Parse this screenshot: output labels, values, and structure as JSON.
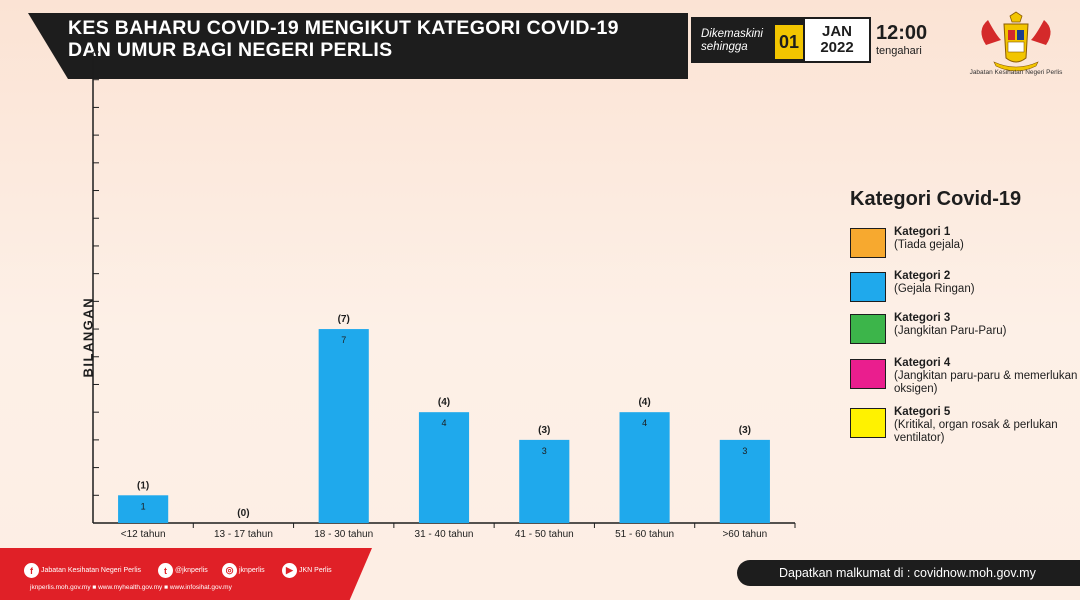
{
  "header": {
    "title": "KES BAHARU COVID-19 MENGIKUT KATEGORI COVID-19 DAN UMUR BAGI NEGERI PERLIS",
    "update_label": "Dikemaskini sehingga",
    "day": "01",
    "month": "JAN",
    "year": "2022",
    "time": "12:00",
    "time_period": "tengahari",
    "org_name": "Jabatan Kesihatan Negeri Perlis"
  },
  "chart_data": {
    "type": "bar",
    "categories": [
      "<12 tahun",
      "13 - 17 tahun",
      "18 - 30 tahun",
      "31 - 40 tahun",
      "41 - 50 tahun",
      "51 - 60 tahun",
      ">60 tahun"
    ],
    "series": [
      {
        "name": "Kategori 1",
        "values": [
          0,
          0,
          0,
          0,
          0,
          0,
          0
        ]
      },
      {
        "name": "Kategori 2",
        "values": [
          1,
          0,
          7,
          4,
          3,
          4,
          3
        ]
      },
      {
        "name": "Kategori 3",
        "values": [
          0,
          0,
          0,
          0,
          0,
          0,
          0
        ]
      },
      {
        "name": "Kategori 4",
        "values": [
          0,
          0,
          0,
          0,
          0,
          0,
          0
        ]
      },
      {
        "name": "Kategori 5",
        "values": [
          0,
          0,
          0,
          0,
          0,
          0,
          0
        ]
      }
    ],
    "totals": [
      "(1)",
      "(0)",
      "(7)",
      "(4)",
      "(3)",
      "(4)",
      "(3)"
    ],
    "segment_labels": [
      "1",
      "",
      "7",
      "4",
      "3",
      "4",
      "3"
    ],
    "ylabel": "BILANGAN",
    "ylim": [
      0,
      17
    ],
    "legend_position": "right"
  },
  "legend": {
    "title": "Kategori Covid-19",
    "items": [
      {
        "name": "Kategori 1",
        "desc": "(Tiada gejala)",
        "color": "#f7a92f"
      },
      {
        "name": "Kategori 2",
        "desc": "(Gejala Ringan)",
        "color": "#1fa9ec"
      },
      {
        "name": "Kategori 3",
        "desc": "(Jangkitan Paru-Paru)",
        "color": "#3cb54a"
      },
      {
        "name": "Kategori 4",
        "desc": "(Jangkitan paru-paru & memerlukan oksigen)",
        "color": "#ea1e8e"
      },
      {
        "name": "Kategori 5",
        "desc": "(Kritikal, organ rosak & perlukan ventilator)",
        "color": "#fff200"
      }
    ]
  },
  "footer": {
    "facebook": "Jabatan Kesihatan Negeri Perlis",
    "twitter": "@jknperlis",
    "instagram": "jknperlis",
    "youtube": "JKN Perlis",
    "links": "jknperlis.moh.gov.my ■ www.myhealth.gov.my ■ www.infosihat.gov.my",
    "info": "Dapatkan malkumat di : covidnow.moh.gov.my"
  },
  "colors": {
    "bar": "#1fa9ec",
    "footer_red": "#e02027",
    "dark": "#1d1d1d",
    "accent_yellow": "#f2c500"
  }
}
